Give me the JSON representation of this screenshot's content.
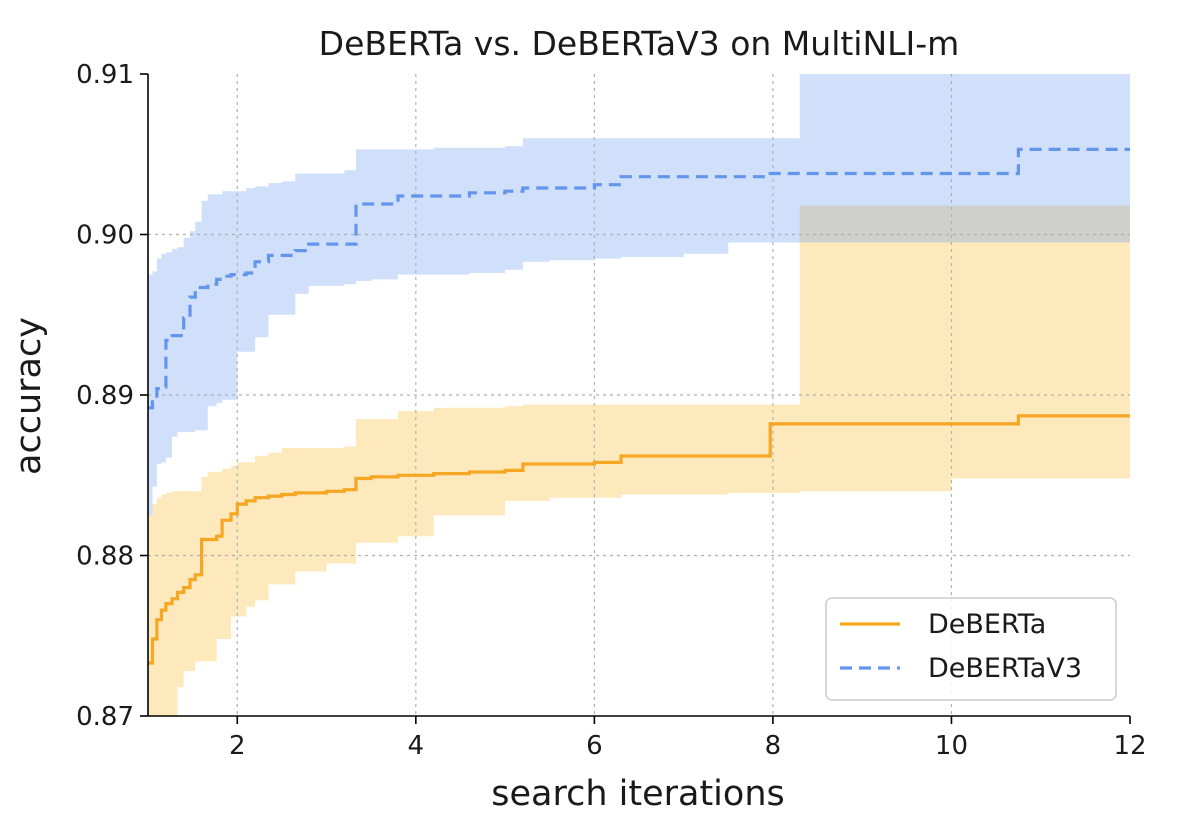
{
  "chart_data": {
    "type": "line",
    "title": "DeBERTa vs. DeBERTaV3 on MultiNLI-m",
    "xlabel": "search iterations",
    "ylabel": "accuracy",
    "xlim": [
      1,
      12
    ],
    "ylim": [
      0.87,
      0.91
    ],
    "xticks": [
      2,
      4,
      6,
      8,
      10,
      12
    ],
    "xtick_labels": [
      "2",
      "4",
      "6",
      "8",
      "10",
      "12"
    ],
    "yticks": [
      0.87,
      0.88,
      0.89,
      0.9,
      0.91
    ],
    "ytick_labels": [
      "0.87",
      "0.88",
      "0.89",
      "0.90",
      "0.91"
    ],
    "grid": true,
    "legend_position": "lower-right",
    "series": [
      {
        "name": "DeBERTa",
        "color": "#f5a623",
        "band_color": "#fde4b3",
        "line_style": "solid",
        "x": [
          1.0,
          1.05,
          1.1,
          1.15,
          1.2,
          1.27,
          1.33,
          1.4,
          1.47,
          1.53,
          1.6,
          1.67,
          1.77,
          1.83,
          1.93,
          2.0,
          2.1,
          2.2,
          2.35,
          2.5,
          2.65,
          2.8,
          3.0,
          3.2,
          3.33,
          3.5,
          3.8,
          4.2,
          4.6,
          5.0,
          5.2,
          5.5,
          6.0,
          6.3,
          7.0,
          7.5,
          7.97,
          8.3,
          9.0,
          10.0,
          10.75,
          11.0,
          12.0
        ],
        "y": [
          0.8733,
          0.8748,
          0.876,
          0.8766,
          0.877,
          0.8773,
          0.8777,
          0.878,
          0.8785,
          0.8788,
          0.881,
          0.881,
          0.8812,
          0.8822,
          0.8826,
          0.8832,
          0.8834,
          0.8836,
          0.8837,
          0.8838,
          0.8839,
          0.8839,
          0.884,
          0.8841,
          0.8848,
          0.8849,
          0.885,
          0.8851,
          0.8852,
          0.8853,
          0.8857,
          0.8857,
          0.8858,
          0.8862,
          0.8862,
          0.8862,
          0.8882,
          0.8882,
          0.8882,
          0.8882,
          0.8887,
          0.8887,
          0.8887
        ],
        "band_lower": [
          0.87,
          0.87,
          0.87,
          0.87,
          0.87,
          0.87,
          0.8718,
          0.8728,
          0.8728,
          0.8734,
          0.8734,
          0.8734,
          0.8748,
          0.8748,
          0.8762,
          0.8762,
          0.8768,
          0.8772,
          0.8782,
          0.8782,
          0.879,
          0.879,
          0.8795,
          0.8795,
          0.8808,
          0.8808,
          0.8812,
          0.8825,
          0.8825,
          0.8834,
          0.8834,
          0.8836,
          0.8836,
          0.8838,
          0.8838,
          0.8839,
          0.8839,
          0.884,
          0.884,
          0.8848,
          0.8848,
          0.8848,
          0.8848
        ],
        "band_upper": [
          0.8825,
          0.8832,
          0.8836,
          0.8838,
          0.8839,
          0.884,
          0.884,
          0.884,
          0.884,
          0.884,
          0.8849,
          0.8852,
          0.8852,
          0.8854,
          0.8856,
          0.8858,
          0.8858,
          0.8862,
          0.8864,
          0.8867,
          0.8867,
          0.8867,
          0.8867,
          0.8868,
          0.8885,
          0.8885,
          0.889,
          0.8892,
          0.8892,
          0.8893,
          0.8894,
          0.8894,
          0.8894,
          0.8894,
          0.8894,
          0.8894,
          0.8894,
          0.9018,
          0.9018,
          0.9018,
          0.9018,
          0.9018,
          0.9018
        ]
      },
      {
        "name": "DeBERTaV3",
        "color": "#6495ed",
        "band_color": "#cddcfb",
        "line_style": "dashed",
        "x": [
          1.0,
          1.05,
          1.1,
          1.15,
          1.2,
          1.27,
          1.33,
          1.4,
          1.47,
          1.53,
          1.6,
          1.67,
          1.77,
          1.83,
          1.93,
          2.0,
          2.1,
          2.2,
          2.35,
          2.5,
          2.65,
          2.8,
          3.0,
          3.2,
          3.33,
          3.5,
          3.8,
          4.2,
          4.6,
          5.0,
          5.2,
          5.5,
          6.0,
          6.3,
          7.0,
          7.5,
          7.97,
          8.3,
          9.0,
          10.0,
          10.75,
          11.0,
          12.0
        ],
        "y": [
          0.8892,
          0.8897,
          0.8904,
          0.8905,
          0.8934,
          0.8937,
          0.8937,
          0.8948,
          0.8961,
          0.8967,
          0.8967,
          0.8969,
          0.8972,
          0.8974,
          0.8975,
          0.8975,
          0.8976,
          0.8983,
          0.8987,
          0.8987,
          0.899,
          0.8994,
          0.8994,
          0.8994,
          0.9019,
          0.9019,
          0.9024,
          0.9024,
          0.9026,
          0.9027,
          0.9029,
          0.9029,
          0.9031,
          0.9036,
          0.9036,
          0.9036,
          0.9038,
          0.9038,
          0.9038,
          0.9038,
          0.9053,
          0.9053,
          0.9053
        ],
        "band_lower": [
          0.8825,
          0.8843,
          0.8857,
          0.8858,
          0.8861,
          0.8874,
          0.8877,
          0.8877,
          0.8877,
          0.8878,
          0.8878,
          0.8893,
          0.8895,
          0.8897,
          0.8897,
          0.8927,
          0.8927,
          0.8936,
          0.895,
          0.895,
          0.8963,
          0.8968,
          0.8968,
          0.8969,
          0.8971,
          0.8972,
          0.8975,
          0.8975,
          0.8976,
          0.8978,
          0.8983,
          0.8984,
          0.8985,
          0.8986,
          0.8988,
          0.8995,
          0.8995,
          0.8995,
          0.8995,
          0.8995,
          0.8995,
          0.8995,
          0.8995
        ],
        "band_upper": [
          0.8975,
          0.8977,
          0.8985,
          0.8988,
          0.8989,
          0.8991,
          0.8992,
          0.8998,
          0.9002,
          0.9008,
          0.9021,
          0.9025,
          0.9025,
          0.9027,
          0.9027,
          0.9027,
          0.9029,
          0.903,
          0.9032,
          0.9033,
          0.9038,
          0.9038,
          0.9038,
          0.904,
          0.9053,
          0.9053,
          0.9053,
          0.9054,
          0.9054,
          0.9055,
          0.906,
          0.906,
          0.906,
          0.906,
          0.906,
          0.906,
          0.906,
          0.91,
          0.91,
          0.91,
          0.91,
          0.91,
          0.91
        ]
      }
    ]
  }
}
